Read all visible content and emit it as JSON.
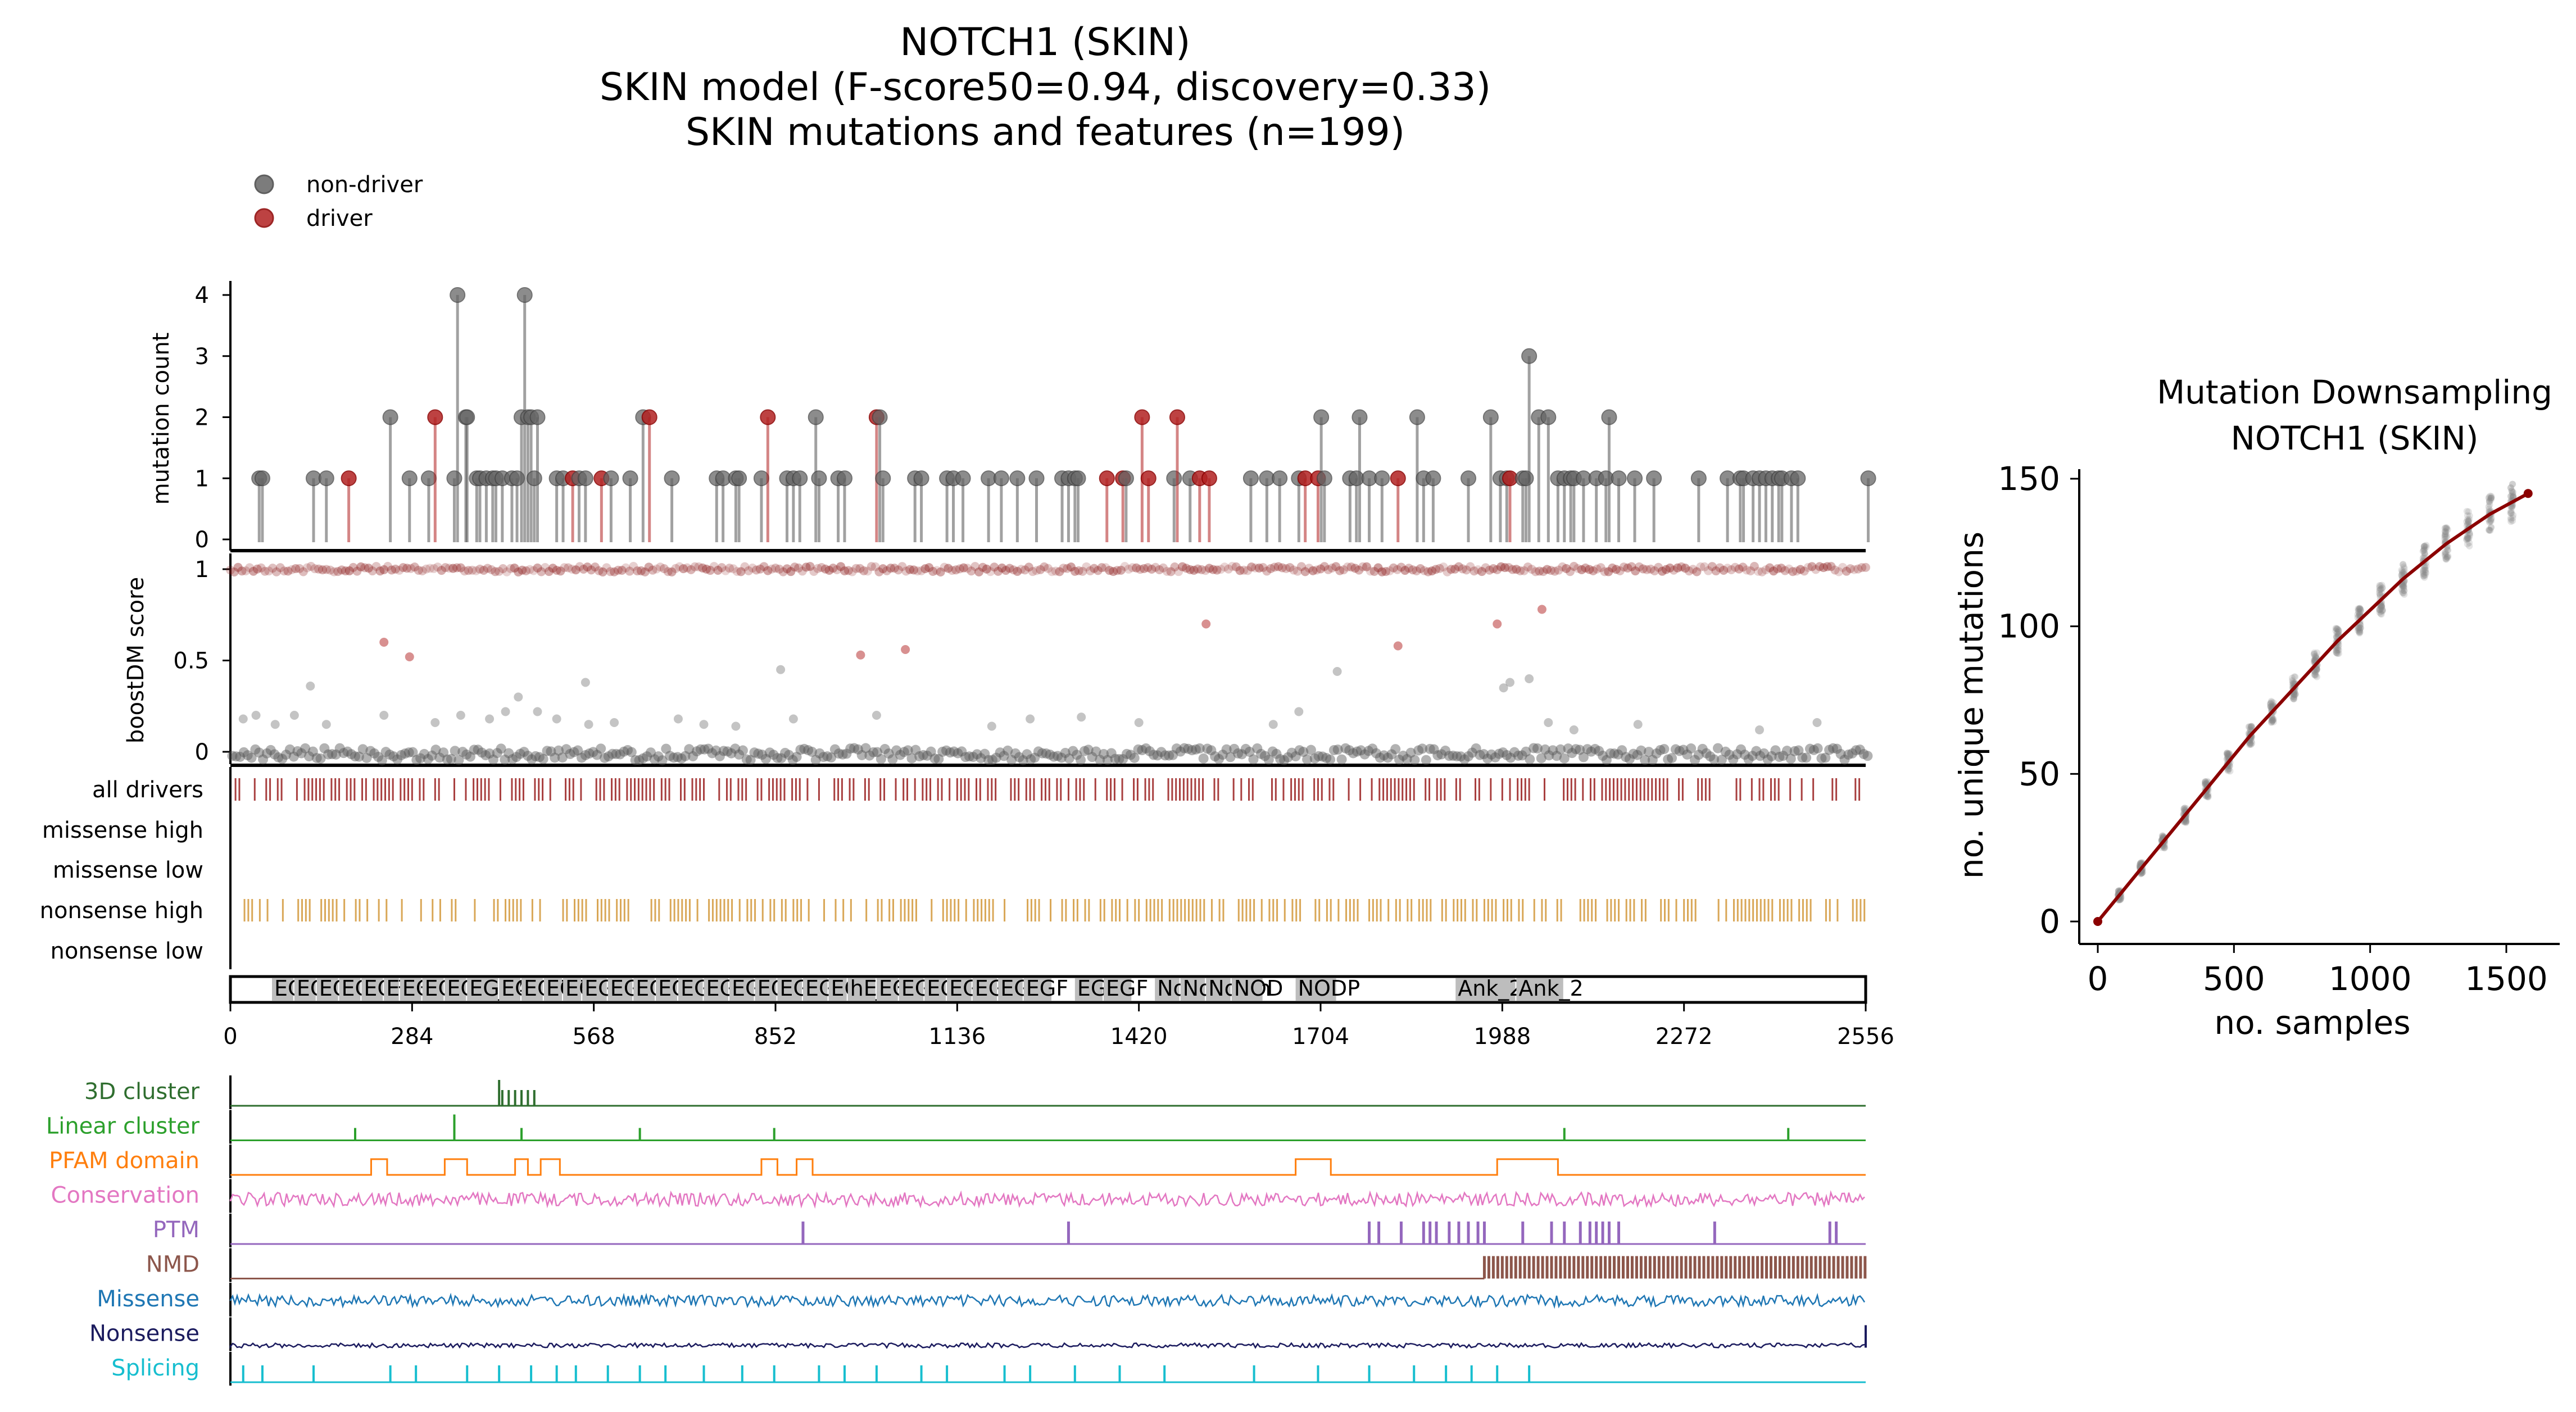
{
  "main_title": [
    "NOTCH1 (SKIN)",
    "SKIN model (F-score50=0.94, discovery=0.33)",
    "SKIN mutations and features (n=199)"
  ],
  "legend": [
    {
      "label": "non-driver",
      "color": "#666666"
    },
    {
      "label": "driver",
      "color": "#b22222"
    }
  ],
  "colors": {
    "non_driver": "#666666",
    "driver": "#b22222",
    "all_drivers": "#8b0000",
    "nonsense_high": "#cd8a1f",
    "domain_fill": "#bdbdbd",
    "downsampling_line": "#8b0000"
  },
  "chart_data": [
    {
      "type": "scatter",
      "panel": "lollipop",
      "ylabel": "mutation count",
      "ylim": [
        0,
        4
      ],
      "yticks": [
        0,
        1,
        2,
        3,
        4
      ],
      "xlim": [
        0,
        2556
      ],
      "points": [
        [
          45,
          1,
          0
        ],
        [
          50,
          1,
          0
        ],
        [
          130,
          1,
          0
        ],
        [
          150,
          1,
          0
        ],
        [
          185,
          1,
          1
        ],
        [
          250,
          2,
          0
        ],
        [
          280,
          1,
          0
        ],
        [
          310,
          1,
          0
        ],
        [
          320,
          2,
          1
        ],
        [
          350,
          1,
          0
        ],
        [
          355,
          4,
          0
        ],
        [
          368,
          2,
          0
        ],
        [
          370,
          2,
          0
        ],
        [
          385,
          1,
          0
        ],
        [
          390,
          1,
          0
        ],
        [
          400,
          1,
          0
        ],
        [
          410,
          1,
          0
        ],
        [
          415,
          1,
          0
        ],
        [
          425,
          1,
          0
        ],
        [
          440,
          1,
          0
        ],
        [
          448,
          1,
          0
        ],
        [
          455,
          2,
          0
        ],
        [
          460,
          4,
          0
        ],
        [
          465,
          2,
          0
        ],
        [
          470,
          2,
          0
        ],
        [
          475,
          1,
          0
        ],
        [
          480,
          2,
          0
        ],
        [
          510,
          1,
          0
        ],
        [
          520,
          1,
          0
        ],
        [
          535,
          1,
          1
        ],
        [
          545,
          1,
          0
        ],
        [
          555,
          1,
          0
        ],
        [
          580,
          1,
          1
        ],
        [
          595,
          1,
          0
        ],
        [
          625,
          1,
          0
        ],
        [
          645,
          2,
          0
        ],
        [
          655,
          2,
          1
        ],
        [
          690,
          1,
          0
        ],
        [
          760,
          1,
          0
        ],
        [
          770,
          1,
          0
        ],
        [
          790,
          1,
          0
        ],
        [
          795,
          1,
          0
        ],
        [
          830,
          1,
          0
        ],
        [
          840,
          2,
          1
        ],
        [
          870,
          1,
          0
        ],
        [
          880,
          1,
          0
        ],
        [
          890,
          1,
          0
        ],
        [
          915,
          2,
          0
        ],
        [
          920,
          1,
          0
        ],
        [
          950,
          1,
          0
        ],
        [
          960,
          1,
          0
        ],
        [
          1010,
          2,
          1
        ],
        [
          1015,
          2,
          0
        ],
        [
          1020,
          1,
          0
        ],
        [
          1070,
          1,
          0
        ],
        [
          1080,
          1,
          0
        ],
        [
          1120,
          1,
          0
        ],
        [
          1130,
          1,
          0
        ],
        [
          1145,
          1,
          0
        ],
        [
          1185,
          1,
          0
        ],
        [
          1205,
          1,
          0
        ],
        [
          1230,
          1,
          0
        ],
        [
          1260,
          1,
          0
        ],
        [
          1300,
          1,
          0
        ],
        [
          1310,
          1,
          0
        ],
        [
          1320,
          1,
          0
        ],
        [
          1325,
          1,
          0
        ],
        [
          1370,
          1,
          1
        ],
        [
          1395,
          1,
          1
        ],
        [
          1400,
          1,
          0
        ],
        [
          1425,
          2,
          1
        ],
        [
          1435,
          1,
          1
        ],
        [
          1475,
          1,
          0
        ],
        [
          1480,
          2,
          1
        ],
        [
          1500,
          1,
          0
        ],
        [
          1515,
          1,
          1
        ],
        [
          1530,
          1,
          1
        ],
        [
          1595,
          1,
          0
        ],
        [
          1620,
          1,
          0
        ],
        [
          1640,
          1,
          0
        ],
        [
          1670,
          1,
          0
        ],
        [
          1680,
          1,
          1
        ],
        [
          1700,
          1,
          1
        ],
        [
          1705,
          2,
          0
        ],
        [
          1710,
          1,
          0
        ],
        [
          1750,
          1,
          0
        ],
        [
          1760,
          1,
          0
        ],
        [
          1765,
          2,
          0
        ],
        [
          1780,
          1,
          0
        ],
        [
          1800,
          1,
          0
        ],
        [
          1825,
          1,
          1
        ],
        [
          1855,
          2,
          0
        ],
        [
          1865,
          1,
          0
        ],
        [
          1880,
          1,
          0
        ],
        [
          1935,
          1,
          0
        ],
        [
          1970,
          2,
          0
        ],
        [
          1985,
          1,
          0
        ],
        [
          1995,
          1,
          0
        ],
        [
          2000,
          1,
          1
        ],
        [
          2020,
          1,
          0
        ],
        [
          2025,
          1,
          0
        ],
        [
          2030,
          3,
          0
        ],
        [
          2045,
          2,
          0
        ],
        [
          2060,
          2,
          0
        ],
        [
          2075,
          1,
          0
        ],
        [
          2085,
          1,
          0
        ],
        [
          2095,
          1,
          0
        ],
        [
          2100,
          1,
          0
        ],
        [
          2115,
          1,
          0
        ],
        [
          2135,
          1,
          0
        ],
        [
          2150,
          1,
          0
        ],
        [
          2155,
          2,
          0
        ],
        [
          2170,
          1,
          0
        ],
        [
          2195,
          1,
          0
        ],
        [
          2225,
          1,
          0
        ],
        [
          2295,
          1,
          0
        ],
        [
          2340,
          1,
          0
        ],
        [
          2360,
          1,
          0
        ],
        [
          2365,
          1,
          0
        ],
        [
          2380,
          1,
          0
        ],
        [
          2390,
          1,
          0
        ],
        [
          2400,
          1,
          0
        ],
        [
          2410,
          1,
          0
        ],
        [
          2420,
          1,
          0
        ],
        [
          2425,
          1,
          0
        ],
        [
          2440,
          1,
          0
        ],
        [
          2450,
          1,
          0
        ],
        [
          2560,
          1,
          0
        ]
      ]
    },
    {
      "type": "scatter",
      "panel": "boostDM",
      "ylabel": "boostDM score",
      "ylim": [
        0,
        1
      ],
      "yticks": [
        "0",
        "0.5",
        "1"
      ],
      "xlim": [
        0,
        2556
      ],
      "outliers": [
        [
          20,
          0.18,
          0
        ],
        [
          40,
          0.2,
          0
        ],
        [
          70,
          0.15,
          0
        ],
        [
          100,
          0.2,
          0
        ],
        [
          125,
          0.36,
          0
        ],
        [
          150,
          0.15,
          0
        ],
        [
          240,
          0.6,
          1
        ],
        [
          280,
          0.52,
          1
        ],
        [
          240,
          0.2,
          0
        ],
        [
          320,
          0.16,
          0
        ],
        [
          360,
          0.2,
          0
        ],
        [
          405,
          0.18,
          0
        ],
        [
          430,
          0.22,
          0
        ],
        [
          450,
          0.3,
          0
        ],
        [
          480,
          0.22,
          0
        ],
        [
          510,
          0.18,
          0
        ],
        [
          555,
          0.38,
          0
        ],
        [
          560,
          0.15,
          0
        ],
        [
          600,
          0.16,
          0
        ],
        [
          700,
          0.18,
          0
        ],
        [
          740,
          0.15,
          0
        ],
        [
          790,
          0.14,
          0
        ],
        [
          860,
          0.45,
          0
        ],
        [
          880,
          0.18,
          0
        ],
        [
          985,
          0.53,
          1
        ],
        [
          1010,
          0.2,
          0
        ],
        [
          1055,
          0.56,
          1
        ],
        [
          1190,
          0.14,
          0
        ],
        [
          1250,
          0.18,
          0
        ],
        [
          1330,
          0.19,
          0
        ],
        [
          1420,
          0.16,
          0
        ],
        [
          1525,
          0.7,
          1
        ],
        [
          1630,
          0.15,
          0
        ],
        [
          1670,
          0.22,
          0
        ],
        [
          1730,
          0.44,
          0
        ],
        [
          1825,
          0.58,
          1
        ],
        [
          1980,
          0.7,
          1
        ],
        [
          1990,
          0.35,
          0
        ],
        [
          2000,
          0.38,
          0
        ],
        [
          2030,
          0.4,
          0
        ],
        [
          2050,
          0.78,
          1
        ],
        [
          2060,
          0.16,
          0
        ],
        [
          2100,
          0.12,
          0
        ],
        [
          2200,
          0.15,
          0
        ],
        [
          2390,
          0.12,
          0
        ],
        [
          2480,
          0.16,
          0
        ]
      ]
    },
    {
      "type": "table",
      "panel": "driver_tracks",
      "tracks": [
        "all drivers",
        "missense high",
        "missense low",
        "nonsense high",
        "nonsense low"
      ],
      "domains": [
        {
          "label": "EGF",
          "start": 65,
          "end": 100
        },
        {
          "label": "EGF",
          "start": 100,
          "end": 135
        },
        {
          "label": "EGF",
          "start": 135,
          "end": 170
        },
        {
          "label": "EGF",
          "start": 170,
          "end": 205
        },
        {
          "label": "EGF",
          "start": 205,
          "end": 240
        },
        {
          "label": "EGF",
          "start": 240,
          "end": 265
        },
        {
          "label": "EGF",
          "start": 265,
          "end": 300
        },
        {
          "label": "EGF",
          "start": 300,
          "end": 335
        },
        {
          "label": "EGF_CA",
          "start": 335,
          "end": 370
        },
        {
          "label": "EGF",
          "start": 370,
          "end": 420
        },
        {
          "label": "EGF",
          "start": 420,
          "end": 455
        },
        {
          "label": "EGF",
          "start": 455,
          "end": 490
        },
        {
          "label": "EGF",
          "start": 490,
          "end": 520
        },
        {
          "label": "EGF",
          "start": 520,
          "end": 550
        },
        {
          "label": "EGF",
          "start": 550,
          "end": 590
        },
        {
          "label": "EGF",
          "start": 590,
          "end": 630
        },
        {
          "label": "EGF",
          "start": 630,
          "end": 665
        },
        {
          "label": "EGF",
          "start": 665,
          "end": 700
        },
        {
          "label": "EGF",
          "start": 700,
          "end": 740
        },
        {
          "label": "EGF",
          "start": 740,
          "end": 780
        },
        {
          "label": "EGF",
          "start": 780,
          "end": 820
        },
        {
          "label": "EGF",
          "start": 820,
          "end": 855
        },
        {
          "label": "EGF",
          "start": 855,
          "end": 895
        },
        {
          "label": "EGF",
          "start": 895,
          "end": 935
        },
        {
          "label": "EGF_CA",
          "start": 935,
          "end": 965
        },
        {
          "label": "hEGF",
          "start": 965,
          "end": 1010
        },
        {
          "label": "EGF",
          "start": 1010,
          "end": 1045
        },
        {
          "label": "EGF",
          "start": 1045,
          "end": 1085
        },
        {
          "label": "EGF",
          "start": 1085,
          "end": 1120
        },
        {
          "label": "EGF",
          "start": 1120,
          "end": 1160
        },
        {
          "label": "EGF",
          "start": 1160,
          "end": 1200
        },
        {
          "label": "EGF",
          "start": 1200,
          "end": 1240
        },
        {
          "label": "EGF",
          "start": 1240,
          "end": 1285
        },
        {
          "label": "EGF",
          "start": 1320,
          "end": 1365
        },
        {
          "label": "EGF",
          "start": 1365,
          "end": 1410
        },
        {
          "label": "Notch",
          "start": 1445,
          "end": 1485
        },
        {
          "label": "Notch",
          "start": 1485,
          "end": 1525
        },
        {
          "label": "Notch",
          "start": 1525,
          "end": 1565
        },
        {
          "label": "NOD",
          "start": 1565,
          "end": 1615
        },
        {
          "label": "NODP",
          "start": 1665,
          "end": 1730
        },
        {
          "label": "Ank_2",
          "start": 1915,
          "end": 2010
        },
        {
          "label": "Ank_2",
          "start": 2010,
          "end": 2085
        }
      ],
      "xticks": [
        0,
        284,
        568,
        852,
        1136,
        1420,
        1704,
        1988,
        2272,
        2556
      ]
    },
    {
      "type": "line",
      "panel": "feature_tracks",
      "tracks": [
        {
          "name": "3D cluster",
          "color": "#2f6e2f"
        },
        {
          "name": "Linear cluster",
          "color": "#2ca02c"
        },
        {
          "name": "PFAM domain",
          "color": "#ff7f0e"
        },
        {
          "name": "Conservation",
          "color": "#e377c2"
        },
        {
          "name": "PTM",
          "color": "#9467bd"
        },
        {
          "name": "NMD",
          "color": "#8c564b"
        },
        {
          "name": "Missense",
          "color": "#1f77b4"
        },
        {
          "name": "Nonsense",
          "color": "#1b1b5e"
        },
        {
          "name": "Splicing",
          "color": "#17becf"
        }
      ],
      "pfam_intervals": [
        [
          220,
          245
        ],
        [
          335,
          370
        ],
        [
          445,
          465
        ],
        [
          485,
          515
        ],
        [
          830,
          855
        ],
        [
          885,
          910
        ],
        [
          1665,
          1720
        ],
        [
          1980,
          2075
        ]
      ],
      "linear_cluster_positions": [
        195,
        350,
        455,
        640,
        850,
        2085,
        2435
      ],
      "cluster3d_positions": [
        420,
        425,
        435,
        445,
        455,
        465,
        475
      ],
      "ptm_positions": [
        895,
        1310,
        1780,
        1795,
        1830,
        1865,
        1875,
        1885,
        1905,
        1920,
        1935,
        1950,
        1960,
        2020,
        2065,
        2085,
        2110,
        2125,
        2135,
        2145,
        2155,
        2170,
        2320,
        2500,
        2510
      ],
      "splicing_positions": [
        20,
        50,
        130,
        250,
        290,
        370,
        420,
        470,
        510,
        540,
        590,
        640,
        680,
        740,
        800,
        850,
        920,
        960,
        1010,
        1080,
        1120,
        1210,
        1250,
        1320,
        1390,
        1460,
        1600,
        1700,
        1780,
        1850,
        1900,
        1940,
        1980,
        2030
      ]
    },
    {
      "type": "scatter",
      "panel": "downsampling",
      "title": [
        "Mutation Downsampling",
        "NOTCH1 (SKIN)"
      ],
      "xlabel": "no. samples",
      "ylabel": "no. unique mutations",
      "xlim": [
        0,
        1600
      ],
      "ylim": [
        0,
        150
      ],
      "xticks": [
        0,
        500,
        1000,
        1500
      ],
      "yticks": [
        0,
        50,
        100,
        150
      ],
      "mean_line": {
        "x": [
          0,
          80,
          160,
          240,
          320,
          400,
          480,
          560,
          640,
          720,
          800,
          880,
          960,
          1040,
          1120,
          1200,
          1280,
          1360,
          1440,
          1520,
          1580
        ],
        "y": [
          0,
          9,
          18,
          27,
          36,
          45,
          54,
          63,
          71,
          79,
          87,
          95,
          102,
          109,
          116,
          122,
          128,
          133,
          138,
          142,
          145
        ]
      }
    }
  ]
}
